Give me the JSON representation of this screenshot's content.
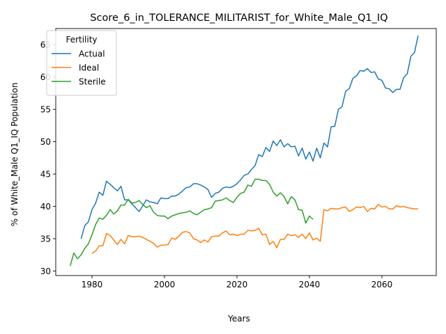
{
  "chart_data": {
    "type": "line",
    "title": "Score_6_in_TOLERANCE_MILITARIST_for_White_Male_Q1_IQ",
    "xlabel": "Years",
    "ylabel": "% of White_Male Q1_IQ Population",
    "xlim": [
      1970,
      2075
    ],
    "ylim": [
      29.3,
      67.5
    ],
    "xticks": [
      1980,
      2000,
      2020,
      2040,
      2060
    ],
    "yticks": [
      30,
      35,
      40,
      45,
      50,
      55,
      60,
      65
    ],
    "grid": false,
    "legend": {
      "title": "Fertility",
      "placement": "top-left"
    },
    "series": [
      {
        "name": "Actual",
        "color": "#1f77b4",
        "points": [
          [
            1977,
            35.0
          ],
          [
            1978,
            37.0
          ],
          [
            1979,
            37.6
          ],
          [
            1980,
            39.5
          ],
          [
            1981,
            40.5
          ],
          [
            1982,
            42.2
          ],
          [
            1983,
            41.7
          ],
          [
            1984,
            43.9
          ],
          [
            1985,
            43.4
          ],
          [
            1986,
            42.9
          ],
          [
            1987,
            42.4
          ],
          [
            1988,
            43.1
          ],
          [
            1989,
            41.0
          ],
          [
            1990,
            41.0
          ],
          [
            1991,
            40.4
          ],
          [
            1992,
            39.8
          ],
          [
            1993,
            39.2
          ],
          [
            1994,
            40.1
          ],
          [
            1995,
            41.0
          ],
          [
            1996,
            40.7
          ],
          [
            1997,
            40.6
          ],
          [
            1998,
            40.4
          ],
          [
            1999,
            41.3
          ],
          [
            2000,
            41.2
          ],
          [
            2001,
            41.2
          ],
          [
            2002,
            41.6
          ],
          [
            2003,
            41.6
          ],
          [
            2004,
            41.9
          ],
          [
            2005,
            42.4
          ],
          [
            2006,
            42.9
          ],
          [
            2007,
            43.0
          ],
          [
            2008,
            43.5
          ],
          [
            2009,
            43.5
          ],
          [
            2010,
            43.3
          ],
          [
            2011,
            43.0
          ],
          [
            2012,
            42.6
          ],
          [
            2013,
            41.4
          ],
          [
            2014,
            42.0
          ],
          [
            2015,
            42.2
          ],
          [
            2016,
            42.8
          ],
          [
            2017,
            43.0
          ],
          [
            2018,
            42.9
          ],
          [
            2019,
            43.1
          ],
          [
            2020,
            43.5
          ],
          [
            2021,
            44.1
          ],
          [
            2022,
            44.8
          ],
          [
            2023,
            45.0
          ],
          [
            2024,
            45.7
          ],
          [
            2025,
            46.3
          ],
          [
            2026,
            48.0
          ],
          [
            2027,
            47.7
          ],
          [
            2028,
            49.1
          ],
          [
            2029,
            48.5
          ],
          [
            2030,
            50.1
          ],
          [
            2031,
            49.4
          ],
          [
            2032,
            50.3
          ],
          [
            2033,
            49.2
          ],
          [
            2034,
            49.7
          ],
          [
            2035,
            49.2
          ],
          [
            2036,
            49.3
          ],
          [
            2037,
            47.8
          ],
          [
            2038,
            49.0
          ],
          [
            2039,
            47.3
          ],
          [
            2040,
            48.4
          ],
          [
            2041,
            47.0
          ],
          [
            2042,
            49.0
          ],
          [
            2043,
            47.5
          ],
          [
            2044,
            49.8
          ],
          [
            2045,
            49.2
          ],
          [
            2046,
            52.3
          ],
          [
            2047,
            52.4
          ],
          [
            2048,
            55.0
          ],
          [
            2049,
            55.4
          ],
          [
            2050,
            57.8
          ],
          [
            2051,
            58.2
          ],
          [
            2052,
            59.8
          ],
          [
            2053,
            60.2
          ],
          [
            2054,
            61.0
          ],
          [
            2055,
            60.9
          ],
          [
            2056,
            61.3
          ],
          [
            2057,
            60.7
          ],
          [
            2058,
            60.8
          ],
          [
            2059,
            59.7
          ],
          [
            2060,
            59.5
          ],
          [
            2061,
            58.3
          ],
          [
            2062,
            58.2
          ],
          [
            2063,
            57.6
          ],
          [
            2064,
            58.1
          ],
          [
            2065,
            58.1
          ],
          [
            2066,
            59.9
          ],
          [
            2067,
            60.5
          ],
          [
            2068,
            63.2
          ],
          [
            2069,
            63.8
          ],
          [
            2070,
            66.4
          ]
        ]
      },
      {
        "name": "Ideal",
        "color": "#ff7f0e",
        "points": [
          [
            1980,
            32.7
          ],
          [
            1981,
            33.1
          ],
          [
            1982,
            33.9
          ],
          [
            1983,
            33.9
          ],
          [
            1984,
            35.8
          ],
          [
            1985,
            35.5
          ],
          [
            1986,
            34.8
          ],
          [
            1987,
            34.1
          ],
          [
            1988,
            34.9
          ],
          [
            1989,
            34.2
          ],
          [
            1990,
            35.5
          ],
          [
            1991,
            35.3
          ],
          [
            1992,
            35.3
          ],
          [
            1993,
            35.4
          ],
          [
            1994,
            35.2
          ],
          [
            1995,
            34.9
          ],
          [
            1996,
            34.6
          ],
          [
            1997,
            34.3
          ],
          [
            1998,
            33.7
          ],
          [
            1999,
            34.0
          ],
          [
            2000,
            34.0
          ],
          [
            2001,
            34.1
          ],
          [
            2002,
            35.1
          ],
          [
            2003,
            34.9
          ],
          [
            2004,
            35.4
          ],
          [
            2005,
            36.0
          ],
          [
            2006,
            36.1
          ],
          [
            2007,
            35.9
          ],
          [
            2008,
            35.0
          ],
          [
            2009,
            34.8
          ],
          [
            2010,
            34.4
          ],
          [
            2011,
            34.8
          ],
          [
            2012,
            34.5
          ],
          [
            2013,
            35.3
          ],
          [
            2014,
            35.4
          ],
          [
            2015,
            35.4
          ],
          [
            2016,
            35.9
          ],
          [
            2017,
            36.2
          ],
          [
            2018,
            35.6
          ],
          [
            2019,
            35.7
          ],
          [
            2020,
            35.5
          ],
          [
            2021,
            35.7
          ],
          [
            2022,
            35.7
          ],
          [
            2023,
            36.3
          ],
          [
            2024,
            36.2
          ],
          [
            2025,
            36.3
          ],
          [
            2026,
            36.6
          ],
          [
            2027,
            35.6
          ],
          [
            2028,
            35.7
          ],
          [
            2029,
            34.1
          ],
          [
            2030,
            34.6
          ],
          [
            2031,
            33.6
          ],
          [
            2032,
            34.9
          ],
          [
            2033,
            34.9
          ],
          [
            2034,
            35.7
          ],
          [
            2035,
            35.5
          ],
          [
            2036,
            35.6
          ],
          [
            2037,
            35.2
          ],
          [
            2038,
            35.7
          ],
          [
            2039,
            35.0
          ],
          [
            2040,
            35.9
          ],
          [
            2041,
            34.8
          ],
          [
            2042,
            35.1
          ],
          [
            2043,
            34.6
          ],
          [
            2044,
            39.5
          ],
          [
            2045,
            39.3
          ],
          [
            2046,
            39.7
          ],
          [
            2047,
            39.6
          ],
          [
            2048,
            39.6
          ],
          [
            2049,
            39.8
          ],
          [
            2050,
            39.9
          ],
          [
            2051,
            39.2
          ],
          [
            2052,
            39.5
          ],
          [
            2053,
            39.9
          ],
          [
            2054,
            39.8
          ],
          [
            2055,
            40.0
          ],
          [
            2056,
            39.2
          ],
          [
            2057,
            39.7
          ],
          [
            2058,
            39.6
          ],
          [
            2059,
            40.3
          ],
          [
            2060,
            39.9
          ],
          [
            2061,
            40.0
          ],
          [
            2062,
            39.6
          ],
          [
            2063,
            39.6
          ],
          [
            2064,
            40.1
          ],
          [
            2065,
            39.9
          ],
          [
            2066,
            40.0
          ],
          [
            2067,
            39.8
          ],
          [
            2068,
            39.7
          ],
          [
            2069,
            39.6
          ],
          [
            2070,
            39.6
          ]
        ]
      },
      {
        "name": "Sterile",
        "color": "#2ca02c",
        "points": [
          [
            1974,
            30.8
          ],
          [
            1975,
            32.8
          ],
          [
            1976,
            31.9
          ],
          [
            1977,
            32.5
          ],
          [
            1978,
            33.5
          ],
          [
            1979,
            34.2
          ],
          [
            1980,
            35.6
          ],
          [
            1981,
            37.2
          ],
          [
            1982,
            38.2
          ],
          [
            1983,
            38.0
          ],
          [
            1984,
            38.6
          ],
          [
            1985,
            39.5
          ],
          [
            1986,
            38.8
          ],
          [
            1987,
            39.3
          ],
          [
            1988,
            40.2
          ],
          [
            1989,
            40.2
          ],
          [
            1990,
            41.1
          ],
          [
            1991,
            40.5
          ],
          [
            1992,
            40.6
          ],
          [
            1993,
            40.9
          ],
          [
            1994,
            40.3
          ],
          [
            1995,
            39.8
          ],
          [
            1996,
            40.1
          ],
          [
            1997,
            39.1
          ],
          [
            1998,
            38.6
          ],
          [
            1999,
            38.5
          ],
          [
            2000,
            38.5
          ],
          [
            2001,
            38.1
          ],
          [
            2002,
            38.5
          ],
          [
            2003,
            38.7
          ],
          [
            2004,
            38.9
          ],
          [
            2005,
            39.0
          ],
          [
            2006,
            39.1
          ],
          [
            2007,
            39.3
          ],
          [
            2008,
            38.9
          ],
          [
            2009,
            38.7
          ],
          [
            2010,
            39.1
          ],
          [
            2011,
            39.5
          ],
          [
            2012,
            39.6
          ],
          [
            2013,
            39.8
          ],
          [
            2014,
            40.8
          ],
          [
            2015,
            40.9
          ],
          [
            2016,
            41.0
          ],
          [
            2017,
            41.3
          ],
          [
            2018,
            40.9
          ],
          [
            2019,
            40.6
          ],
          [
            2020,
            41.4
          ],
          [
            2021,
            42.0
          ],
          [
            2022,
            42.2
          ],
          [
            2023,
            43.3
          ],
          [
            2024,
            43.1
          ],
          [
            2025,
            44.2
          ],
          [
            2026,
            44.2
          ],
          [
            2027,
            44.0
          ],
          [
            2028,
            44.0
          ],
          [
            2029,
            43.4
          ],
          [
            2030,
            42.2
          ],
          [
            2031,
            41.6
          ],
          [
            2032,
            42.1
          ],
          [
            2033,
            41.5
          ],
          [
            2034,
            40.4
          ],
          [
            2035,
            41.5
          ],
          [
            2036,
            41.0
          ],
          [
            2037,
            39.5
          ],
          [
            2038,
            39.4
          ],
          [
            2039,
            37.4
          ],
          [
            2040,
            38.5
          ],
          [
            2041,
            38.0
          ]
        ]
      }
    ]
  }
}
